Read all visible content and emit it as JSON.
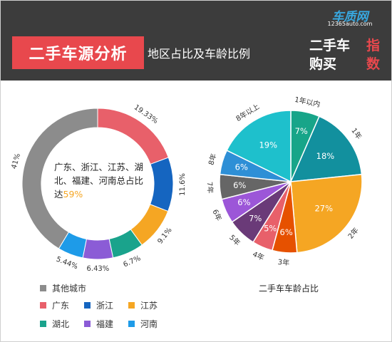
{
  "header": {
    "title": "二手车源分析",
    "subtitle": "地区占比及车龄比例",
    "logo_brand": "车质网",
    "logo_url": "12365auto.com",
    "logo_line1": "二手车",
    "logo_line2": "购买",
    "logo_zhi1": "指",
    "logo_zhi2": "数"
  },
  "colors": {
    "header_bg": "#3c3c3c",
    "title_red": "#e8484d",
    "accent_orange": "#f5a623"
  },
  "chart_data": [
    {
      "type": "pie",
      "variant": "donut",
      "center_text": "广东、浙江、江苏、湖北、福建、河南总占比达",
      "center_highlight": "59%",
      "categories": [
        "广东",
        "浙江",
        "江苏",
        "湖北",
        "福建",
        "河南",
        "其他城市"
      ],
      "labels": [
        "19.33%",
        "11.6%",
        "9.1%",
        "6.7%",
        "6.43%",
        "5.44%",
        "41%"
      ],
      "values": [
        19.33,
        11.6,
        9.1,
        6.7,
        6.43,
        5.44,
        41.4
      ],
      "colors": [
        "#e8606a",
        "#1565c0",
        "#f5a623",
        "#1aa38c",
        "#8b5cd6",
        "#1e9be8",
        "#8c8c8c"
      ],
      "legend": [
        {
          "label": "其他城市",
          "color": "#8c8c8c"
        },
        {
          "label": "广东",
          "color": "#e8606a"
        },
        {
          "label": "浙江",
          "color": "#1565c0"
        },
        {
          "label": "江苏",
          "color": "#f5a623"
        },
        {
          "label": "湖北",
          "color": "#1aa38c"
        },
        {
          "label": "福建",
          "color": "#8b5cd6"
        },
        {
          "label": "河南",
          "color": "#1e9be8"
        }
      ]
    },
    {
      "type": "pie",
      "title": "二手车车龄占比",
      "categories": [
        "1年以内",
        "1年",
        "2年",
        "3年",
        "4年",
        "5年",
        "6年",
        "7年",
        "8年",
        "8年以上"
      ],
      "labels": [
        "7%",
        "18%",
        "27%",
        "6%",
        "5%",
        "7%",
        "6%",
        "6%",
        "6%",
        "19%"
      ],
      "values": [
        7,
        18,
        27,
        6,
        5,
        7,
        6,
        6,
        6,
        19
      ],
      "colors": [
        "#17a589",
        "#12909e",
        "#f5a623",
        "#e65100",
        "#e8606a",
        "#6a3a78",
        "#9c56d8",
        "#666666",
        "#2e8fd6",
        "#1ec0cc"
      ]
    }
  ]
}
